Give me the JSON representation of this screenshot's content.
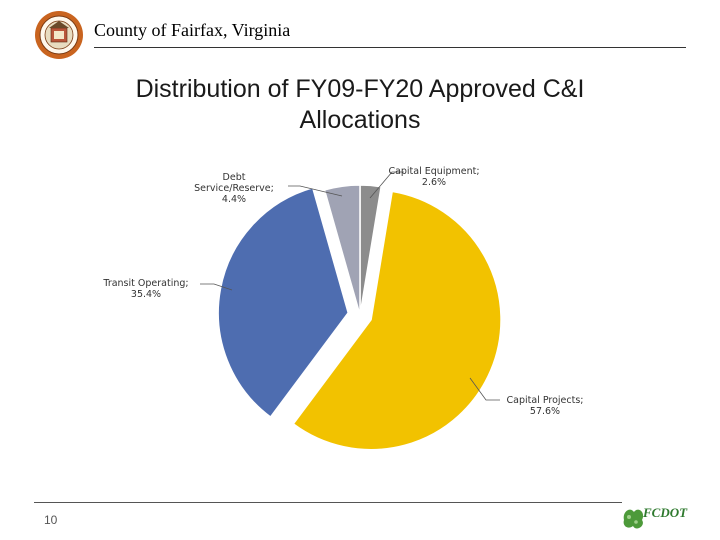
{
  "header": {
    "org": "County of Fairfax, Virginia"
  },
  "footer": {
    "page_number": "10",
    "logo_text": "FCDOT"
  },
  "colors": {
    "capital_equipment": "#8c8c8c",
    "capital_projects": "#f2c200",
    "transit_operating": "#4e6db0",
    "debt_service": "#a0a3b4"
  },
  "chart_data": {
    "type": "pie",
    "title": "Distribution of FY09-FY20 Approved C&I Allocations",
    "slices": [
      {
        "label": "Capital Equipment; 2.6%",
        "value": 2.6
      },
      {
        "label": "Capital Projects; 57.6%",
        "value": 57.6
      },
      {
        "label": "Transit Operating; 35.4%",
        "value": 35.4
      },
      {
        "label": "Debt Service/Reserve; 4.4%",
        "value": 4.4
      }
    ]
  }
}
